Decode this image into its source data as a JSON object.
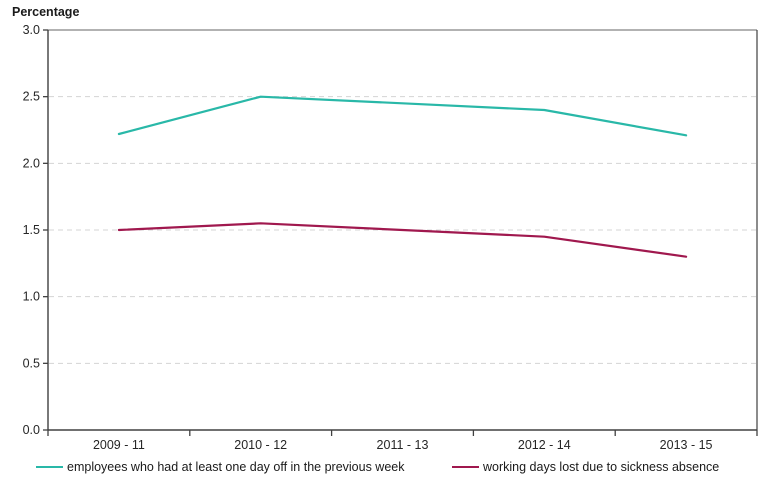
{
  "title": "Percentage",
  "chart_data": {
    "type": "line",
    "title": "Percentage",
    "xlabel": "",
    "ylabel": "Percentage",
    "categories": [
      "2009 - 11",
      "2010 - 12",
      "2011 - 13",
      "2012 - 14",
      "2013 - 15"
    ],
    "series": [
      {
        "name": "employees who had at least one day off in the previous week",
        "color": "#29b8a8",
        "values": [
          2.22,
          2.5,
          2.45,
          2.4,
          2.21
        ]
      },
      {
        "name": "working days lost due to sickness absence",
        "color": "#a0184e",
        "values": [
          1.5,
          1.55,
          1.5,
          1.45,
          1.3
        ]
      }
    ],
    "ylim": [
      0.0,
      3.0
    ],
    "ytick_step": 0.5,
    "ytick_labels": [
      "0.0",
      "0.5",
      "1.0",
      "1.5",
      "2.0",
      "2.5",
      "3.0"
    ],
    "grid": "horizontal-dashed",
    "legend_position": "bottom"
  },
  "colors": {
    "axis_dark": "#404040",
    "border_top": "#999999",
    "gridline": "#d4d4d4",
    "tick_label": "#262626",
    "title_text": "#1a1a1a"
  }
}
